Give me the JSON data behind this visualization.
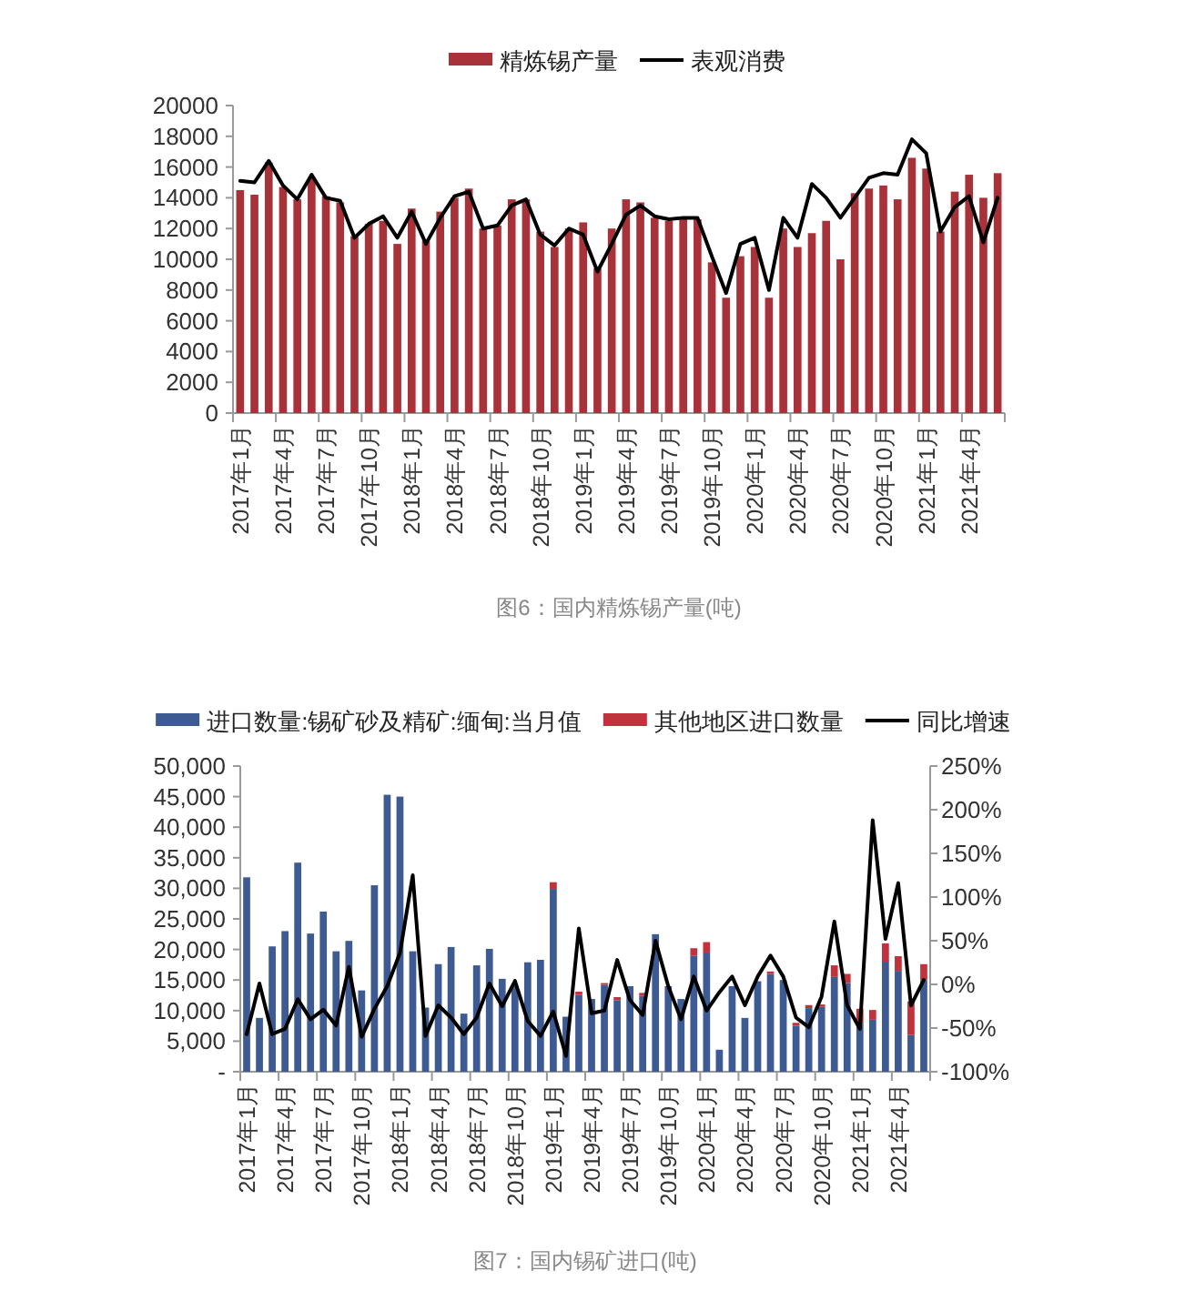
{
  "chart_data": [
    {
      "type": "bar",
      "categories": [
        "2017年1月",
        null,
        null,
        "2017年4月",
        null,
        null,
        "2017年7月",
        null,
        null,
        "2017年10月",
        null,
        null,
        "2018年1月",
        null,
        null,
        "2018年4月",
        null,
        null,
        "2018年7月",
        null,
        null,
        "2018年10月",
        null,
        null,
        "2019年1月",
        null,
        null,
        "2019年4月",
        null,
        null,
        "2019年7月",
        null,
        null,
        "2019年10月",
        null,
        null,
        "2020年1月",
        null,
        null,
        "2020年4月",
        null,
        null,
        "2020年7月",
        null,
        null,
        "2020年10月",
        null,
        null,
        "2021年1月",
        null,
        null,
        "2021年4月",
        null,
        null
      ],
      "series": [
        {
          "name": "精炼锡产量",
          "color": "#a8323a",
          "values": [
            14500,
            14200,
            16300,
            14700,
            13900,
            15300,
            14100,
            13700,
            11500,
            12300,
            12500,
            11000,
            13300,
            11200,
            13100,
            14000,
            14600,
            12000,
            12200,
            13900,
            13900,
            11800,
            10800,
            12000,
            12400,
            9400,
            12000,
            13900,
            13700,
            12700,
            12500,
            12700,
            12600,
            9800,
            7500,
            10200,
            10800,
            7500,
            12000,
            10800,
            11700,
            12500,
            10000,
            14300,
            14600,
            14800,
            13900,
            16600,
            15900,
            11800,
            14400,
            15500,
            14000,
            15600
          ]
        },
        {
          "name": "表观消费",
          "type": "line",
          "color": "#000000",
          "values": [
            15100,
            15000,
            16400,
            14800,
            13900,
            15500,
            14000,
            13800,
            11400,
            12300,
            12800,
            11400,
            13100,
            11000,
            12700,
            14100,
            14400,
            12000,
            12200,
            13500,
            13900,
            11600,
            10900,
            12000,
            11600,
            9200,
            11000,
            12900,
            13500,
            12800,
            12600,
            12700,
            12700,
            10200,
            7800,
            11000,
            11400,
            8000,
            12700,
            11400,
            14900,
            14000,
            12700,
            14000,
            15300,
            15600,
            15500,
            17800,
            16900,
            11800,
            13400,
            14100,
            11100,
            14000
          ]
        }
      ],
      "ylim": [
        0,
        20000
      ],
      "yticks": [
        0,
        2000,
        4000,
        6000,
        8000,
        10000,
        12000,
        14000,
        16000,
        18000,
        20000
      ],
      "legend": "top",
      "line_style": "solid",
      "annotations": [
        "图6：国内精炼锡产量(吨)"
      ]
    },
    {
      "type": "bar",
      "stacked": true,
      "categories": [
        "2017年1月",
        null,
        null,
        "2017年4月",
        null,
        null,
        "2017年7月",
        null,
        null,
        "2017年10月",
        null,
        null,
        "2018年1月",
        null,
        null,
        "2018年4月",
        null,
        null,
        "2018年7月",
        null,
        null,
        "2018年10月",
        null,
        null,
        "2019年1月",
        null,
        null,
        "2019年4月",
        null,
        null,
        "2019年7月",
        null,
        null,
        "2019年10月",
        null,
        null,
        "2020年1月",
        null,
        null,
        "2020年4月",
        null,
        null,
        "2020年7月",
        null,
        null,
        "2020年10月",
        null,
        null,
        "2021年1月",
        null,
        null,
        "2021年4月",
        null,
        null
      ],
      "series": [
        {
          "name": "进口数量:锡矿砂及精矿:缅甸:当月值",
          "color": "#3d5a93",
          "values": [
            31800,
            8800,
            20500,
            23000,
            34200,
            22600,
            26200,
            19700,
            21400,
            13300,
            30500,
            45300,
            45000,
            19700,
            10500,
            17600,
            20400,
            9500,
            17400,
            20100,
            15200,
            14000,
            17900,
            18300,
            29900,
            9000,
            12600,
            11900,
            14200,
            11700,
            14000,
            12400,
            22500,
            14000,
            11900,
            19000,
            19500,
            3600,
            14000,
            8800,
            14800,
            16000,
            15000,
            7500,
            10400,
            10600,
            15500,
            14500,
            8000,
            8500,
            18000,
            16500,
            6000,
            15000
          ]
        },
        {
          "name": "其他地区进口数量",
          "color": "#c0323c",
          "values": [
            0,
            0,
            0,
            0,
            0,
            0,
            0,
            0,
            0,
            0,
            0,
            0,
            0,
            0,
            0,
            0,
            0,
            0,
            0,
            0,
            0,
            0,
            0,
            0,
            1100,
            0,
            500,
            0,
            300,
            500,
            0,
            500,
            0,
            0,
            0,
            1200,
            1700,
            0,
            0,
            0,
            0,
            400,
            0,
            500,
            500,
            400,
            1900,
            1500,
            2300,
            1600,
            3000,
            2400,
            5500,
            2600
          ]
        },
        {
          "name": "同比增速",
          "type": "line",
          "axis": "y2",
          "color": "#000000",
          "values": [
            -57,
            1,
            -57,
            -51,
            -17,
            -40,
            -29,
            -47,
            20,
            -60,
            -28,
            -2,
            36,
            125,
            -59,
            -24,
            -38,
            -57,
            -38,
            1,
            -25,
            4,
            -42,
            -59,
            -31,
            -82,
            64,
            -33,
            -30,
            28,
            -18,
            -35,
            50,
            -2,
            -40,
            9,
            -30,
            -9,
            9,
            -24,
            9,
            33,
            9,
            -38,
            -49,
            -14,
            72,
            -24,
            -51,
            188,
            52,
            116,
            -24,
            5
          ]
        }
      ],
      "ylim": [
        0,
        50000
      ],
      "yticks": [
        {
          "value": 0,
          "label": "-"
        },
        {
          "value": 5000,
          "label": "5,000"
        },
        {
          "value": 10000,
          "label": "10,000"
        },
        {
          "value": 15000,
          "label": "15,000"
        },
        {
          "value": 20000,
          "label": "20,000"
        },
        {
          "value": 25000,
          "label": "25,000"
        },
        {
          "value": 30000,
          "label": "30,000"
        },
        {
          "value": 35000,
          "label": "35,000"
        },
        {
          "value": 40000,
          "label": "40,000"
        },
        {
          "value": 45000,
          "label": "45,000"
        },
        {
          "value": 50000,
          "label": "50,000"
        }
      ],
      "y2lim": [
        -100,
        250
      ],
      "y2ticks": [
        {
          "value": -100,
          "label": "-100%"
        },
        {
          "value": -50,
          "label": "-50%"
        },
        {
          "value": 0,
          "label": "0%"
        },
        {
          "value": 50,
          "label": "50%"
        },
        {
          "value": 100,
          "label": "100%"
        },
        {
          "value": 150,
          "label": "150%"
        },
        {
          "value": 200,
          "label": "200%"
        },
        {
          "value": 250,
          "label": "250%"
        }
      ],
      "legend": "top",
      "line_style": "solid",
      "annotations": [
        "图7：国内锡矿进口(吨)"
      ]
    }
  ]
}
